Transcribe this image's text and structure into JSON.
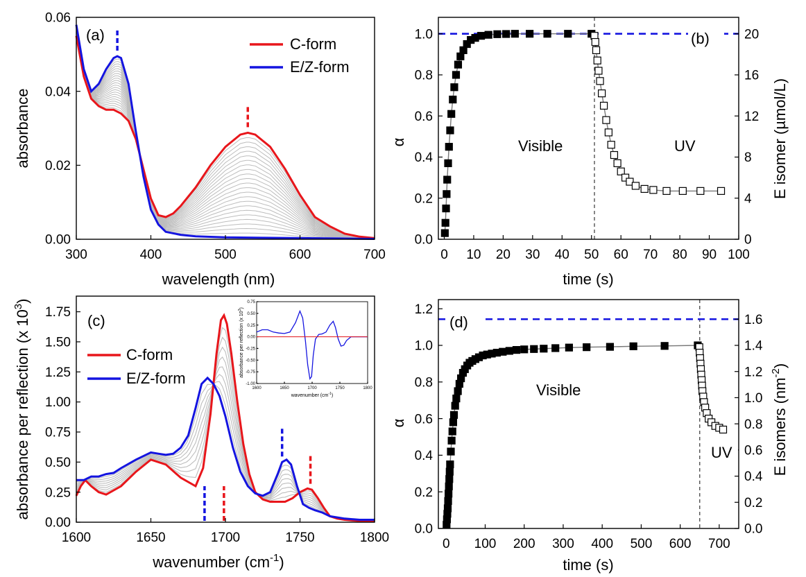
{
  "chart_data": [
    {
      "id": "a",
      "type": "line",
      "panel_label": "(a)",
      "xlabel": "wavelength (nm)",
      "ylabel": "absorbance",
      "xlim": [
        300,
        700
      ],
      "ylim": [
        0,
        0.06
      ],
      "xticks": [
        "300",
        "400",
        "500",
        "600",
        "700"
      ],
      "yticks": [
        "0.00",
        "0.02",
        "0.04",
        "0.06"
      ],
      "legend_position": "top-right",
      "intermediate_count": 22,
      "series": [
        {
          "name": "C-form",
          "color": "#e8161b",
          "x": [
            300,
            310,
            320,
            330,
            340,
            350,
            360,
            370,
            380,
            390,
            400,
            410,
            420,
            430,
            440,
            460,
            480,
            500,
            520,
            530,
            540,
            560,
            580,
            600,
            620,
            640,
            660,
            680,
            700
          ],
          "y": [
            0.055,
            0.044,
            0.038,
            0.036,
            0.035,
            0.035,
            0.034,
            0.032,
            0.027,
            0.019,
            0.011,
            0.0065,
            0.006,
            0.007,
            0.009,
            0.014,
            0.02,
            0.025,
            0.0283,
            0.0288,
            0.0283,
            0.025,
            0.019,
            0.012,
            0.006,
            0.0035,
            0.0015,
            0.0007,
            0.0003
          ]
        },
        {
          "name": "E/Z-form",
          "color": "#1414e0",
          "x": [
            300,
            310,
            320,
            330,
            340,
            350,
            355,
            360,
            370,
            380,
            390,
            400,
            410,
            420,
            440,
            460,
            500,
            550,
            600,
            650,
            700
          ],
          "y": [
            0.058,
            0.046,
            0.04,
            0.042,
            0.046,
            0.049,
            0.0495,
            0.049,
            0.042,
            0.029,
            0.017,
            0.008,
            0.004,
            0.002,
            0.0012,
            0.0008,
            0.0005,
            0.0004,
            0.0003,
            0.0002,
            0.0001
          ]
        }
      ],
      "markers": [
        {
          "x": 355,
          "color": "#1414e0"
        },
        {
          "x": 530,
          "color": "#e8161b"
        }
      ]
    },
    {
      "id": "b",
      "type": "scatter",
      "panel_label": "(b)",
      "xlabel": "time (s)",
      "ylabel": "α",
      "y2label": "E isomer (µmol/L)",
      "xlim": [
        -2,
        100
      ],
      "ylim": [
        0,
        1.08
      ],
      "y2lim": [
        0,
        21.6
      ],
      "xticks": [
        "0",
        "10",
        "20",
        "30",
        "40",
        "50",
        "60",
        "70",
        "80",
        "90",
        "100"
      ],
      "yticks": [
        "0.0",
        "0.2",
        "0.4",
        "0.6",
        "0.8",
        "1.0"
      ],
      "y2ticks": [
        "0",
        "4",
        "8",
        "12",
        "16",
        "20"
      ],
      "reference_line_y": 1.0,
      "divider_x": 51,
      "annotations": [
        "Visible",
        "UV"
      ],
      "series": [
        {
          "name": "",
          "marker": "filled-square",
          "x": [
            0.2,
            0.4,
            0.6,
            0.8,
            1.0,
            1.3,
            1.6,
            2.0,
            2.4,
            2.9,
            3.4,
            4.0,
            4.7,
            5.5,
            6.5,
            7.7,
            9.0,
            10.5,
            12.5,
            15,
            18,
            21,
            24,
            29,
            35,
            42,
            50
          ],
          "y": [
            0.03,
            0.08,
            0.15,
            0.22,
            0.29,
            0.37,
            0.45,
            0.53,
            0.61,
            0.68,
            0.74,
            0.8,
            0.85,
            0.89,
            0.92,
            0.95,
            0.97,
            0.98,
            0.99,
            0.995,
            0.998,
            0.999,
            1.0,
            1.0,
            1.0,
            1.0,
            1.0
          ]
        },
        {
          "name": "",
          "marker": "open-square",
          "x": [
            51,
            51.3,
            51.6,
            52,
            52.4,
            52.9,
            53.5,
            54.2,
            55,
            55.8,
            56.7,
            57.7,
            58.8,
            60,
            61.5,
            63,
            65,
            68,
            71,
            75.5,
            81,
            87,
            94
          ],
          "y": [
            0.99,
            0.96,
            0.92,
            0.87,
            0.82,
            0.77,
            0.71,
            0.65,
            0.58,
            0.52,
            0.46,
            0.41,
            0.37,
            0.33,
            0.3,
            0.28,
            0.26,
            0.245,
            0.24,
            0.235,
            0.235,
            0.235,
            0.235
          ]
        }
      ]
    },
    {
      "id": "c",
      "type": "line",
      "panel_label": "(c)",
      "xlabel": "wavenumber (cm",
      "xlabel_sup": "-1",
      "xlabel_end": ")",
      "ylabel": "absorbance per reflection (x 10",
      "ylabel_sup": "3",
      "ylabel_end": ")",
      "xlim": [
        1600,
        1800
      ],
      "ylim": [
        0,
        1.88
      ],
      "xticks": [
        "1600",
        "1650",
        "1700",
        "1750",
        "1800"
      ],
      "yticks": [
        "0.00",
        "0.25",
        "0.50",
        "0.75",
        "1.00",
        "1.25",
        "1.50",
        "1.75"
      ],
      "legend_position": "left",
      "intermediate_count": 8,
      "series": [
        {
          "name": "C-form",
          "color": "#e8161b",
          "x": [
            1600,
            1603,
            1606,
            1610,
            1615,
            1620,
            1630,
            1640,
            1650,
            1660,
            1670,
            1680,
            1685,
            1690,
            1694,
            1697,
            1699,
            1701,
            1704,
            1708,
            1712,
            1716,
            1720,
            1725,
            1730,
            1735,
            1740,
            1745,
            1750,
            1755,
            1758,
            1762,
            1766,
            1770,
            1775,
            1780,
            1790,
            1800
          ],
          "y": [
            0.22,
            0.3,
            0.35,
            0.3,
            0.25,
            0.23,
            0.3,
            0.42,
            0.52,
            0.48,
            0.37,
            0.3,
            0.45,
            0.9,
            1.4,
            1.68,
            1.72,
            1.65,
            1.4,
            1.0,
            0.65,
            0.4,
            0.25,
            0.19,
            0.17,
            0.17,
            0.17,
            0.2,
            0.25,
            0.28,
            0.27,
            0.2,
            0.12,
            0.05,
            0.03,
            0.02,
            0.01,
            0.01
          ]
        },
        {
          "name": "E/Z-form",
          "color": "#1414e0",
          "x": [
            1600,
            1605,
            1610,
            1615,
            1620,
            1625,
            1630,
            1640,
            1650,
            1655,
            1660,
            1665,
            1670,
            1675,
            1680,
            1684,
            1688,
            1692,
            1696,
            1700,
            1705,
            1710,
            1715,
            1720,
            1725,
            1730,
            1735,
            1738,
            1741,
            1744,
            1748,
            1752,
            1756,
            1760,
            1765,
            1770,
            1780,
            1790,
            1800
          ],
          "y": [
            0.35,
            0.35,
            0.38,
            0.38,
            0.4,
            0.41,
            0.45,
            0.52,
            0.58,
            0.57,
            0.56,
            0.57,
            0.62,
            0.72,
            0.95,
            1.15,
            1.2,
            1.15,
            1.05,
            0.88,
            0.62,
            0.42,
            0.3,
            0.24,
            0.22,
            0.25,
            0.4,
            0.5,
            0.52,
            0.48,
            0.3,
            0.15,
            0.12,
            0.1,
            0.08,
            0.05,
            0.03,
            0.02,
            0.02
          ]
        }
      ],
      "markers": [
        {
          "x": 1686,
          "color": "#1414e0"
        },
        {
          "x": 1699,
          "color": "#e8161b"
        },
        {
          "x": 1738,
          "color": "#1414e0"
        },
        {
          "x": 1757,
          "color": "#e8161b"
        }
      ],
      "inset": {
        "xlabel": "wavenumber (cm",
        "xlabel_sup": "-1",
        "xlabel_end": ")",
        "ylabel": "absorbance per reflection (x 10",
        "ylabel_sup": "3",
        "ylabel_end": ")",
        "xlim": [
          1600,
          1800
        ],
        "ylim": [
          -1.0,
          0.75
        ],
        "xticks": [
          "1600",
          "1650",
          "1700",
          "1750",
          "1800"
        ],
        "yticks": [
          "-1.00",
          "-0.75",
          "-0.50",
          "-0.25",
          "0.00",
          "0.25",
          "0.50",
          "0.75"
        ],
        "series": [
          {
            "name": "",
            "color": "#1414e0",
            "x": [
              1600,
              1610,
              1620,
              1630,
              1640,
              1650,
              1660,
              1670,
              1678,
              1683,
              1688,
              1692,
              1696,
              1699,
              1702,
              1706,
              1712,
              1718,
              1725,
              1732,
              1738,
              1742,
              1747,
              1752,
              1757,
              1762,
              1770,
              1780,
              1800
            ],
            "y": [
              0.1,
              0.15,
              0.15,
              0.1,
              0.08,
              0.07,
              0.1,
              0.3,
              0.55,
              0.4,
              -0.1,
              -0.6,
              -0.9,
              -0.85,
              -0.4,
              -0.05,
              0.05,
              0.06,
              0.1,
              0.25,
              0.33,
              0.2,
              -0.05,
              -0.2,
              -0.18,
              -0.08,
              0.0,
              0.0,
              0.0
            ]
          },
          {
            "name": "",
            "color": "#e8161b",
            "x": [
              1600,
              1800
            ],
            "y": [
              0.0,
              0.0
            ]
          }
        ]
      }
    },
    {
      "id": "d",
      "type": "scatter",
      "panel_label": "(d)",
      "xlabel": "time (s)",
      "ylabel": "α",
      "y2label": "E isomers (nm",
      "y2label_sup": "-2",
      "y2label_end": ")",
      "xlim": [
        -20,
        750
      ],
      "ylim": [
        0,
        1.25
      ],
      "y2lim": [
        0,
        1.75
      ],
      "xticks": [
        "0",
        "100",
        "200",
        "300",
        "400",
        "500",
        "600",
        "700"
      ],
      "yticks": [
        "0.0",
        "0.2",
        "0.4",
        "0.6",
        "0.8",
        "1.0",
        "1.2"
      ],
      "y2ticks": [
        "0.0",
        "0.2",
        "0.4",
        "0.6",
        "0.8",
        "1.0",
        "1.2",
        "1.4",
        "1.6"
      ],
      "reference_line_y": 1.143,
      "divider_x": 650,
      "annotations": [
        "Visible",
        "UV"
      ],
      "series": [
        {
          "name": "",
          "marker": "filled-square",
          "x": [
            1,
            2,
            3,
            4,
            5,
            6,
            7,
            8,
            9,
            10,
            12,
            14,
            16,
            18,
            20,
            23,
            26,
            30,
            34,
            38,
            43,
            48,
            54,
            60,
            67,
            75,
            84,
            94,
            105,
            117,
            130,
            145,
            162,
            180,
            200,
            225,
            250,
            280,
            315,
            360,
            420,
            480,
            560,
            645
          ],
          "y": [
            0.02,
            0.05,
            0.08,
            0.11,
            0.15,
            0.19,
            0.23,
            0.27,
            0.31,
            0.35,
            0.42,
            0.48,
            0.53,
            0.58,
            0.62,
            0.67,
            0.71,
            0.75,
            0.79,
            0.82,
            0.85,
            0.87,
            0.89,
            0.905,
            0.915,
            0.925,
            0.935,
            0.945,
            0.95,
            0.955,
            0.96,
            0.965,
            0.97,
            0.975,
            0.978,
            0.98,
            0.982,
            0.985,
            0.988,
            0.99,
            0.992,
            0.995,
            0.997,
            1.0
          ]
        },
        {
          "name": "",
          "marker": "open-square",
          "x": [
            649,
            650,
            651,
            652,
            653,
            654,
            655,
            656,
            657,
            659,
            661,
            664,
            668,
            673,
            680,
            690,
            700,
            710
          ],
          "y": [
            0.99,
            0.96,
            0.93,
            0.9,
            0.87,
            0.84,
            0.81,
            0.78,
            0.75,
            0.72,
            0.69,
            0.66,
            0.63,
            0.6,
            0.58,
            0.56,
            0.55,
            0.54
          ]
        }
      ]
    }
  ]
}
